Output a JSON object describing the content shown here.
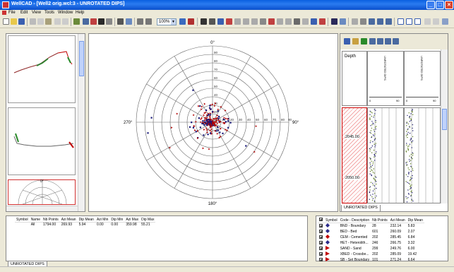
{
  "window": {
    "title": "WellCAD - [Well2 orig.wcl:3 - UNROTATED DIPS]"
  },
  "menu": [
    "File",
    "Edit",
    "View",
    "Tools",
    "Window",
    "Help"
  ],
  "toolbar": {
    "zoom": "100%"
  },
  "stereonet": {
    "directions": {
      "n": "0°",
      "e": "90°",
      "s": "180°",
      "w": "270°"
    },
    "ring_labels_n": [
      "90",
      "80",
      "70",
      "60",
      "50",
      "40",
      "30",
      "20",
      "10"
    ],
    "ring_labels_e": [
      "10",
      "20",
      "30",
      "40",
      "50",
      "60",
      "70",
      "80",
      "90"
    ]
  },
  "thumbnails": {
    "third_label": "0°"
  },
  "log": {
    "depth_header": "Depth",
    "track1_title": "UNROTATED DIPS",
    "track2_title": "UNROTATED DIPS",
    "scale_min": "0",
    "scale_max": "90",
    "depth_labels": [
      "2045.00",
      "2050.00"
    ],
    "tab": "UNROTATED DIPS"
  },
  "stats": {
    "columns": [
      "Symbol",
      "Name",
      "Nb Points",
      "Azi Mean",
      "Dip Mean",
      "Azi Min",
      "Dip Min",
      "Azi Max",
      "Dip Max"
    ],
    "rows": [
      [
        "",
        "All",
        "1794.00",
        "269.93",
        "5.94",
        "0.00",
        "0.00",
        "359.98",
        "55.21"
      ]
    ],
    "tab": "UNROTATED DIPS"
  },
  "legend": {
    "columns": [
      "Symbol",
      "Code - Description",
      "Nb Points",
      "Azi Mean",
      "Dip Mean"
    ],
    "rows": [
      {
        "code": "BND - Boundary",
        "n": "28",
        "azi": "232.14",
        "dip": "5.83",
        "color": "#2a2a8a",
        "shape": "diamond"
      },
      {
        "code": "BED - Bed",
        "n": "601",
        "azi": "260.09",
        "dip": "2.07",
        "color": "#2a2a8a",
        "shape": "diamond"
      },
      {
        "code": "CEM - Cemented",
        "n": "202",
        "azi": "285.45",
        "dip": "6.84",
        "color": "#c00000",
        "shape": "diamond"
      },
      {
        "code": "HET - Heterolith...",
        "n": "246",
        "azi": "266.75",
        "dip": "3.32",
        "color": "#2a2a8a",
        "shape": "diamond"
      },
      {
        "code": "SAND - Sand",
        "n": "299",
        "azi": "249.76",
        "dip": "6.00",
        "color": "#c00000",
        "shape": "tri"
      },
      {
        "code": "XBED - Crossbe...",
        "n": "202",
        "azi": "285.09",
        "dip": "19.42",
        "color": "#c00000",
        "shape": "tri"
      },
      {
        "code": "SB - Set Boundary",
        "n": "101",
        "azi": "271.24",
        "dip": "6.64",
        "color": "#c00000",
        "shape": "tri"
      }
    ]
  }
}
